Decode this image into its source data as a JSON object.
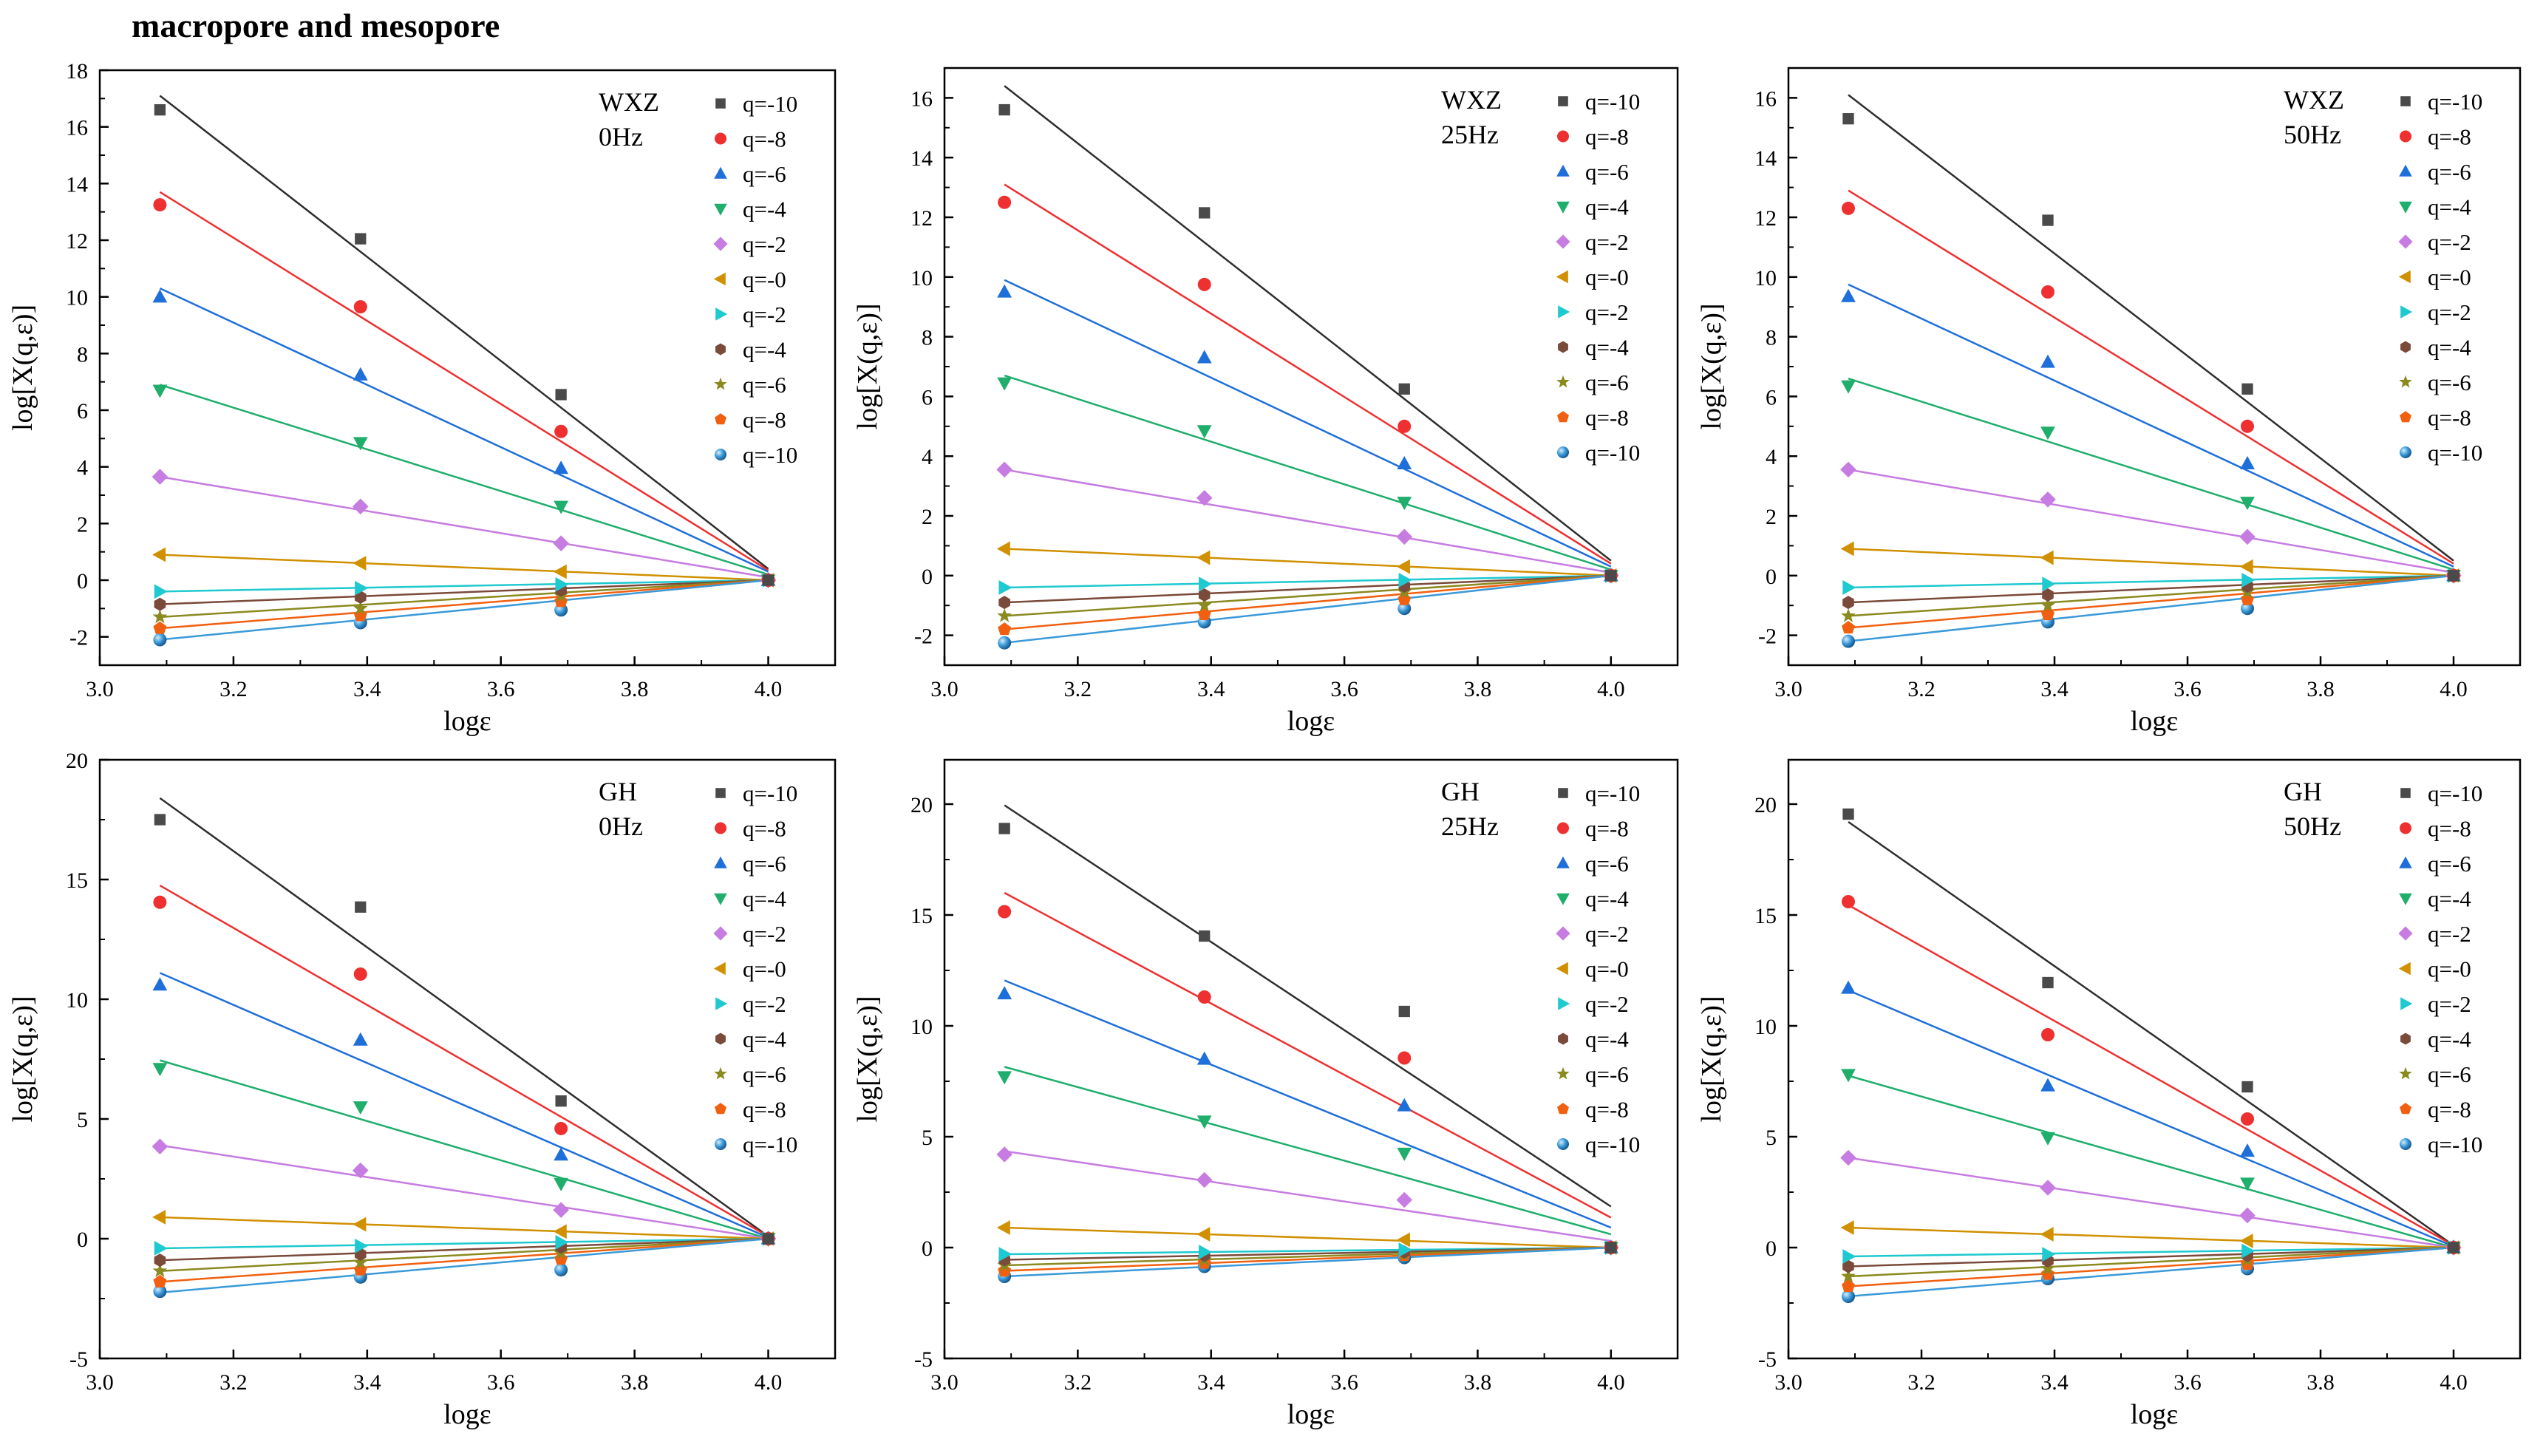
{
  "figure_title": "macropore and mesopore",
  "chart_data": [
    {
      "type": "scatter",
      "panel": "WXZ 0Hz",
      "annotation": [
        "WXZ",
        "0Hz"
      ],
      "xlabel": "logε",
      "ylabel": "log[X(q,ε)]",
      "xlim": [
        3.0,
        4.1
      ],
      "ylim": [
        -3,
        18
      ],
      "xticks": [
        3.0,
        3.2,
        3.4,
        3.6,
        3.8,
        4.0
      ],
      "yticks": [
        -2,
        0,
        2,
        4,
        6,
        8,
        10,
        12,
        14,
        16,
        18
      ],
      "x": [
        3.09,
        3.39,
        3.69,
        4.0
      ],
      "series": [
        {
          "name": "q=-10",
          "values": [
            16.6,
            12.05,
            6.55,
            0.0
          ],
          "fit": [
            17.1,
            0.4
          ]
        },
        {
          "name": "q=-8",
          "values": [
            13.25,
            9.65,
            5.25,
            0.0
          ],
          "fit": [
            13.7,
            0.35
          ]
        },
        {
          "name": "q=-6",
          "values": [
            10.0,
            7.25,
            3.95,
            0.0
          ],
          "fit": [
            10.3,
            0.3
          ]
        },
        {
          "name": "q=-4",
          "values": [
            6.7,
            4.85,
            2.6,
            0.0
          ],
          "fit": [
            6.9,
            0.2
          ]
        },
        {
          "name": "q=-2",
          "values": [
            3.65,
            2.6,
            1.3,
            0.0
          ],
          "fit": [
            3.65,
            0.1
          ]
        },
        {
          "name": "q=-0",
          "values": [
            0.9,
            0.6,
            0.3,
            0.0
          ],
          "fit": [
            0.9,
            0.0
          ]
        },
        {
          "name": "q=-2",
          "values": [
            -0.4,
            -0.28,
            -0.15,
            0.0
          ],
          "fit": [
            -0.4,
            0.0
          ]
        },
        {
          "name": "q=-4",
          "values": [
            -0.85,
            -0.6,
            -0.35,
            0.0
          ],
          "fit": [
            -0.85,
            0.0
          ]
        },
        {
          "name": "q=-6",
          "values": [
            -1.3,
            -1.0,
            -0.55,
            0.0
          ],
          "fit": [
            -1.3,
            0.0
          ]
        },
        {
          "name": "q=-8",
          "values": [
            -1.7,
            -1.25,
            -0.75,
            0.0
          ],
          "fit": [
            -1.7,
            0.0
          ]
        },
        {
          "name": "q=-10",
          "values": [
            -2.1,
            -1.5,
            -1.05,
            0.0
          ],
          "fit": [
            -2.1,
            0.0
          ]
        }
      ]
    },
    {
      "type": "scatter",
      "panel": "WXZ 25Hz",
      "annotation": [
        "WXZ",
        "25Hz"
      ],
      "xlabel": "logε",
      "ylabel": "log[X(q,ε)]",
      "xlim": [
        3.0,
        4.1
      ],
      "ylim": [
        -3,
        17
      ],
      "xticks": [
        3.0,
        3.2,
        3.4,
        3.6,
        3.8,
        4.0
      ],
      "yticks": [
        -2,
        0,
        2,
        4,
        6,
        8,
        10,
        12,
        14,
        16
      ],
      "x": [
        3.09,
        3.39,
        3.69,
        4.0
      ],
      "series": [
        {
          "name": "q=-10",
          "values": [
            15.6,
            12.15,
            6.25,
            0.0
          ],
          "fit": [
            16.4,
            0.5
          ]
        },
        {
          "name": "q=-8",
          "values": [
            12.5,
            9.75,
            5.0,
            0.0
          ],
          "fit": [
            13.1,
            0.4
          ]
        },
        {
          "name": "q=-6",
          "values": [
            9.5,
            7.3,
            3.75,
            0.0
          ],
          "fit": [
            9.9,
            0.3
          ]
        },
        {
          "name": "q=-4",
          "values": [
            6.45,
            4.85,
            2.45,
            0.0
          ],
          "fit": [
            6.7,
            0.2
          ]
        },
        {
          "name": "q=-2",
          "values": [
            3.55,
            2.6,
            1.3,
            0.0
          ],
          "fit": [
            3.55,
            0.1
          ]
        },
        {
          "name": "q=-0",
          "values": [
            0.9,
            0.6,
            0.3,
            0.0
          ],
          "fit": [
            0.9,
            0.0
          ]
        },
        {
          "name": "q=-2",
          "values": [
            -0.4,
            -0.28,
            -0.15,
            0.0
          ],
          "fit": [
            -0.4,
            0.0
          ]
        },
        {
          "name": "q=-4",
          "values": [
            -0.9,
            -0.65,
            -0.35,
            0.0
          ],
          "fit": [
            -0.9,
            0.0
          ]
        },
        {
          "name": "q=-6",
          "values": [
            -1.35,
            -1.0,
            -0.55,
            0.0
          ],
          "fit": [
            -1.35,
            0.0
          ]
        },
        {
          "name": "q=-8",
          "values": [
            -1.8,
            -1.3,
            -0.8,
            0.0
          ],
          "fit": [
            -1.8,
            0.0
          ]
        },
        {
          "name": "q=-10",
          "values": [
            -2.25,
            -1.55,
            -1.1,
            0.0
          ],
          "fit": [
            -2.25,
            0.0
          ]
        }
      ]
    },
    {
      "type": "scatter",
      "panel": "WXZ 50Hz",
      "annotation": [
        "WXZ",
        "50Hz"
      ],
      "xlabel": "logε",
      "ylabel": "log[X(q,ε)]",
      "xlim": [
        3.0,
        4.1
      ],
      "ylim": [
        -3,
        17
      ],
      "xticks": [
        3.0,
        3.2,
        3.4,
        3.6,
        3.8,
        4.0
      ],
      "yticks": [
        -2,
        0,
        2,
        4,
        6,
        8,
        10,
        12,
        14,
        16
      ],
      "x": [
        3.09,
        3.39,
        3.69,
        4.0
      ],
      "series": [
        {
          "name": "q=-10",
          "values": [
            15.3,
            11.9,
            6.25,
            0.0
          ],
          "fit": [
            16.1,
            0.5
          ]
        },
        {
          "name": "q=-8",
          "values": [
            12.3,
            9.5,
            5.0,
            0.0
          ],
          "fit": [
            12.9,
            0.4
          ]
        },
        {
          "name": "q=-6",
          "values": [
            9.35,
            7.15,
            3.75,
            0.0
          ],
          "fit": [
            9.75,
            0.3
          ]
        },
        {
          "name": "q=-4",
          "values": [
            6.35,
            4.8,
            2.45,
            0.0
          ],
          "fit": [
            6.6,
            0.2
          ]
        },
        {
          "name": "q=-2",
          "values": [
            3.55,
            2.55,
            1.3,
            0.0
          ],
          "fit": [
            3.55,
            0.1
          ]
        },
        {
          "name": "q=-0",
          "values": [
            0.9,
            0.6,
            0.3,
            0.0
          ],
          "fit": [
            0.9,
            0.0
          ]
        },
        {
          "name": "q=-2",
          "values": [
            -0.4,
            -0.28,
            -0.15,
            0.0
          ],
          "fit": [
            -0.4,
            0.0
          ]
        },
        {
          "name": "q=-4",
          "values": [
            -0.9,
            -0.65,
            -0.35,
            0.0
          ],
          "fit": [
            -0.9,
            0.0
          ]
        },
        {
          "name": "q=-6",
          "values": [
            -1.35,
            -1.0,
            -0.55,
            0.0
          ],
          "fit": [
            -1.35,
            0.0
          ]
        },
        {
          "name": "q=-8",
          "values": [
            -1.75,
            -1.3,
            -0.8,
            0.0
          ],
          "fit": [
            -1.75,
            0.0
          ]
        },
        {
          "name": "q=-10",
          "values": [
            -2.2,
            -1.55,
            -1.1,
            0.0
          ],
          "fit": [
            -2.2,
            0.0
          ]
        }
      ]
    },
    {
      "type": "scatter",
      "panel": "GH 0Hz",
      "annotation": [
        "GH",
        "0Hz"
      ],
      "xlabel": "logε",
      "ylabel": "log[X(q,ε)]",
      "xlim": [
        3.0,
        4.1
      ],
      "ylim": [
        -5,
        20
      ],
      "xticks": [
        3.0,
        3.2,
        3.4,
        3.6,
        3.8,
        4.0
      ],
      "yticks": [
        -5,
        0,
        5,
        10,
        15,
        20
      ],
      "x": [
        3.09,
        3.39,
        3.69,
        4.0
      ],
      "series": [
        {
          "name": "q=-10",
          "values": [
            17.5,
            13.85,
            5.75,
            0.0
          ],
          "fit": [
            18.4,
            0.1
          ]
        },
        {
          "name": "q=-8",
          "values": [
            14.05,
            11.05,
            4.6,
            0.0
          ],
          "fit": [
            14.75,
            0.1
          ]
        },
        {
          "name": "q=-6",
          "values": [
            10.6,
            8.3,
            3.5,
            0.0
          ],
          "fit": [
            11.1,
            0.05
          ]
        },
        {
          "name": "q=-4",
          "values": [
            7.1,
            5.5,
            2.3,
            0.0
          ],
          "fit": [
            7.45,
            0.0
          ]
        },
        {
          "name": "q=-2",
          "values": [
            3.85,
            2.85,
            1.2,
            0.0
          ],
          "fit": [
            3.9,
            0.0
          ]
        },
        {
          "name": "q=-0",
          "values": [
            0.9,
            0.6,
            0.3,
            0.0
          ],
          "fit": [
            0.9,
            0.0
          ]
        },
        {
          "name": "q=-2",
          "values": [
            -0.4,
            -0.3,
            -0.15,
            0.0
          ],
          "fit": [
            -0.4,
            0.0
          ]
        },
        {
          "name": "q=-4",
          "values": [
            -0.9,
            -0.65,
            -0.35,
            0.0
          ],
          "fit": [
            -0.9,
            0.0
          ]
        },
        {
          "name": "q=-6",
          "values": [
            -1.35,
            -1.0,
            -0.6,
            0.0
          ],
          "fit": [
            -1.35,
            0.0
          ]
        },
        {
          "name": "q=-8",
          "values": [
            -1.8,
            -1.3,
            -0.85,
            0.0
          ],
          "fit": [
            -1.8,
            0.0
          ]
        },
        {
          "name": "q=-10",
          "values": [
            -2.2,
            -1.6,
            -1.3,
            0.0
          ],
          "fit": [
            -2.25,
            0.0
          ]
        }
      ]
    },
    {
      "type": "scatter",
      "panel": "GH 25Hz",
      "annotation": [
        "GH",
        "25Hz"
      ],
      "xlabel": "logε",
      "ylabel": "log[X(q,ε)]",
      "xlim": [
        3.0,
        4.1
      ],
      "ylim": [
        -5,
        22
      ],
      "xticks": [
        3.0,
        3.2,
        3.4,
        3.6,
        3.8,
        4.0
      ],
      "yticks": [
        -5,
        0,
        5,
        10,
        15,
        20
      ],
      "x": [
        3.09,
        3.39,
        3.69,
        4.0
      ],
      "series": [
        {
          "name": "q=-10",
          "values": [
            18.9,
            14.05,
            10.65,
            0.0
          ],
          "fit": [
            19.95,
            1.85
          ]
        },
        {
          "name": "q=-8",
          "values": [
            15.15,
            11.3,
            8.55,
            0.0
          ],
          "fit": [
            16.0,
            1.35
          ]
        },
        {
          "name": "q=-6",
          "values": [
            11.45,
            8.5,
            6.4,
            0.0
          ],
          "fit": [
            12.05,
            0.9
          ]
        },
        {
          "name": "q=-4",
          "values": [
            7.7,
            5.7,
            4.25,
            0.0
          ],
          "fit": [
            8.15,
            0.6
          ]
        },
        {
          "name": "q=-2",
          "values": [
            4.2,
            3.05,
            2.15,
            0.0
          ],
          "fit": [
            4.35,
            0.3
          ]
        },
        {
          "name": "q=-0",
          "values": [
            0.9,
            0.6,
            0.35,
            0.0
          ],
          "fit": [
            0.9,
            0.0
          ]
        },
        {
          "name": "q=-2",
          "values": [
            -0.3,
            -0.2,
            -0.1,
            0.0
          ],
          "fit": [
            -0.3,
            0.0
          ]
        },
        {
          "name": "q=-4",
          "values": [
            -0.55,
            -0.35,
            -0.2,
            0.0
          ],
          "fit": [
            -0.55,
            0.0
          ]
        },
        {
          "name": "q=-6",
          "values": [
            -0.8,
            -0.55,
            -0.3,
            0.0
          ],
          "fit": [
            -0.8,
            0.0
          ]
        },
        {
          "name": "q=-8",
          "values": [
            -1.05,
            -0.7,
            -0.35,
            0.0
          ],
          "fit": [
            -1.05,
            0.0
          ]
        },
        {
          "name": "q=-10",
          "values": [
            -1.3,
            -0.85,
            -0.45,
            0.0
          ],
          "fit": [
            -1.3,
            0.0
          ]
        }
      ]
    },
    {
      "type": "scatter",
      "panel": "GH 50Hz",
      "annotation": [
        "GH",
        "50Hz"
      ],
      "xlabel": "logε",
      "ylabel": "log[X(q,ε)]",
      "xlim": [
        3.0,
        4.1
      ],
      "ylim": [
        -5,
        22
      ],
      "xticks": [
        3.0,
        3.2,
        3.4,
        3.6,
        3.8,
        4.0
      ],
      "yticks": [
        -5,
        0,
        5,
        10,
        15,
        20
      ],
      "x": [
        3.09,
        3.39,
        3.69,
        4.0
      ],
      "series": [
        {
          "name": "q=-10",
          "values": [
            19.55,
            11.95,
            7.25,
            0.0
          ],
          "fit": [
            19.2,
            0.1
          ]
        },
        {
          "name": "q=-8",
          "values": [
            15.6,
            9.6,
            5.8,
            0.0
          ],
          "fit": [
            15.45,
            0.1
          ]
        },
        {
          "name": "q=-6",
          "values": [
            11.7,
            7.3,
            4.35,
            0.0
          ],
          "fit": [
            11.6,
            0.05
          ]
        },
        {
          "name": "q=-4",
          "values": [
            7.8,
            4.95,
            2.9,
            0.0
          ],
          "fit": [
            7.75,
            0.0
          ]
        },
        {
          "name": "q=-2",
          "values": [
            4.05,
            2.7,
            1.45,
            0.0
          ],
          "fit": [
            4.05,
            0.0
          ]
        },
        {
          "name": "q=-0",
          "values": [
            0.9,
            0.6,
            0.3,
            0.0
          ],
          "fit": [
            0.9,
            0.0
          ]
        },
        {
          "name": "q=-2",
          "values": [
            -0.4,
            -0.3,
            -0.15,
            0.0
          ],
          "fit": [
            -0.4,
            0.0
          ]
        },
        {
          "name": "q=-4",
          "values": [
            -0.85,
            -0.6,
            -0.35,
            0.0
          ],
          "fit": [
            -0.85,
            0.0
          ]
        },
        {
          "name": "q=-6",
          "values": [
            -1.3,
            -0.95,
            -0.55,
            0.0
          ],
          "fit": [
            -1.3,
            0.0
          ]
        },
        {
          "name": "q=-8",
          "values": [
            -1.75,
            -1.2,
            -0.75,
            0.0
          ],
          "fit": [
            -1.75,
            0.0
          ]
        },
        {
          "name": "q=-10",
          "values": [
            -2.2,
            -1.4,
            -0.95,
            0.0
          ],
          "fit": [
            -2.2,
            0.0
          ]
        }
      ]
    }
  ],
  "series_styles": [
    {
      "marker": "square",
      "color": "#4a4a4a",
      "line": "#2e2e2e"
    },
    {
      "marker": "circle",
      "color": "#ee3030",
      "line": "#ee3030"
    },
    {
      "marker": "triangle-up",
      "color": "#1e6fd9",
      "line": "#1e6fd9"
    },
    {
      "marker": "triangle-down",
      "color": "#1fae6b",
      "line": "#1fae6b"
    },
    {
      "marker": "diamond",
      "color": "#c67ce0",
      "line": "#c67ce0"
    },
    {
      "marker": "triangle-left",
      "color": "#d09000",
      "line": "#d09000"
    },
    {
      "marker": "triangle-right",
      "color": "#1ec9cf",
      "line": "#1ec9cf"
    },
    {
      "marker": "hexagon",
      "color": "#7a4a3a",
      "line": "#7a4a3a"
    },
    {
      "marker": "star",
      "color": "#8a8a20",
      "line": "#8a8a20"
    },
    {
      "marker": "pentagon",
      "color": "#f06010",
      "line": "#f06010"
    },
    {
      "marker": "sphere",
      "color": "#3a9ad9",
      "line": "#3a9ad9"
    }
  ]
}
